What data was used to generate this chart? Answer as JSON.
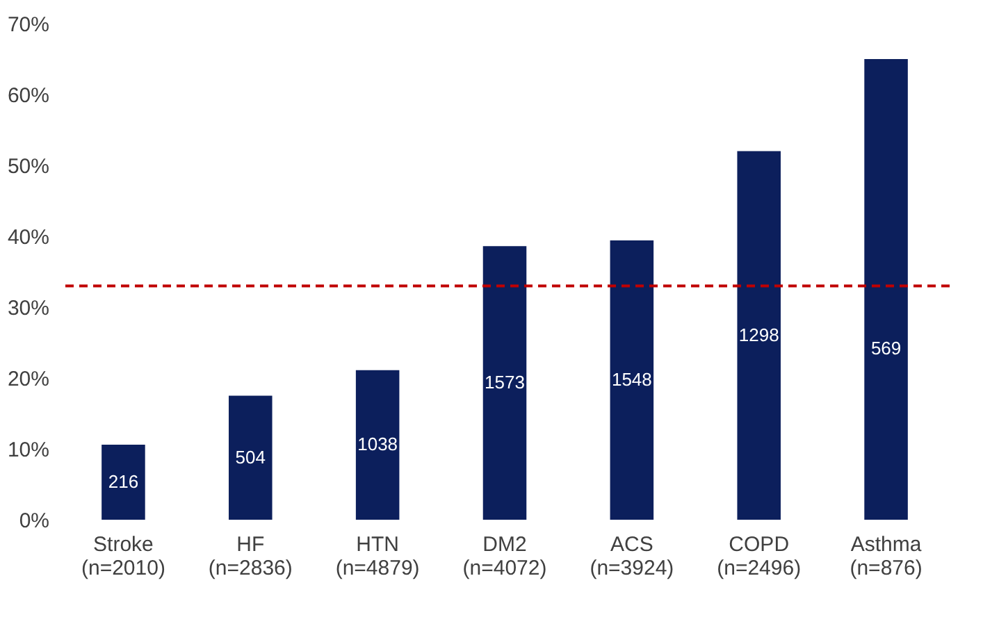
{
  "chart_data": {
    "type": "bar",
    "categories": [
      "Stroke\n(n=2010)",
      "HF\n(n=2836)",
      "HTN\n(n=4879)",
      "DM2\n(n=4072)",
      "ACS\n(n=3924)",
      "COPD\n(n=2496)",
      "Asthma\n(n=876)"
    ],
    "values": [
      10.6,
      17.5,
      21.1,
      38.6,
      39.4,
      52,
      65
    ],
    "annotations": [
      "216",
      "504",
      "1038",
      "1573",
      "1548",
      "1298",
      "569"
    ],
    "legend": false,
    "color": "#0c1f5c",
    "ylim": [
      0,
      70
    ],
    "yticks": [
      {
        "value": 0,
        "label": "0%"
      },
      {
        "value": 10,
        "label": "10%"
      },
      {
        "value": 20,
        "label": "20%"
      },
      {
        "value": 30,
        "label": "30%"
      },
      {
        "value": 40,
        "label": "40%"
      },
      {
        "value": 50,
        "label": "50%"
      },
      {
        "value": 60,
        "label": "60%"
      },
      {
        "value": 70,
        "label": "70%"
      }
    ],
    "ref_lines": [
      {
        "axis": "y",
        "value": 33,
        "color": "#c00000",
        "line_style": "dashed"
      }
    ],
    "grid": false
  }
}
